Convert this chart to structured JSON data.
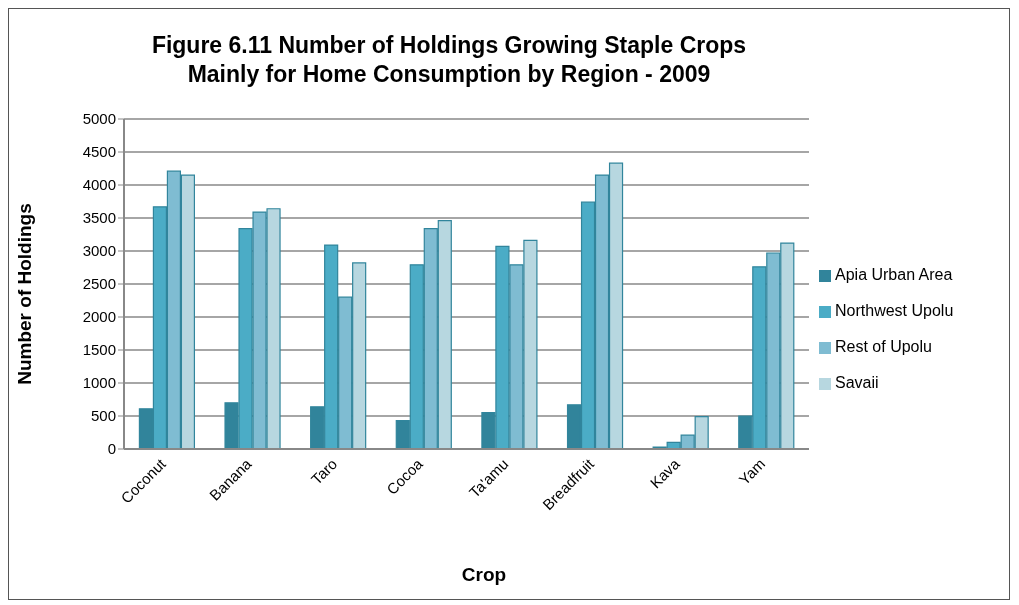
{
  "chart_data": {
    "type": "bar",
    "title": "Figure 6.11 Number of Holdings Growing Staple Crops\nMainly for Home Consumption by Region - 2009",
    "xlabel": "Crop",
    "ylabel": "Number of Holdings",
    "categories": [
      "Coconut",
      "Banana",
      "Taro",
      "Cocoa",
      "Ta'amu",
      "Breadfruit",
      "Kava",
      "Yam"
    ],
    "series": [
      {
        "name": "Apia Urban Area",
        "color": "#31849b",
        "values": [
          610,
          700,
          640,
          430,
          550,
          670,
          30,
          500
        ]
      },
      {
        "name": "Northwest Upolu",
        "color": "#4bacc6",
        "values": [
          3670,
          3340,
          3090,
          2790,
          3070,
          3740,
          100,
          2760
        ]
      },
      {
        "name": "Rest of Upolu",
        "color": "#7fbcd2",
        "values": [
          4210,
          3590,
          2300,
          3340,
          2790,
          4150,
          210,
          2970
        ]
      },
      {
        "name": "Savaii",
        "color": "#b7d7e0",
        "values": [
          4150,
          3640,
          2820,
          3460,
          3160,
          4330,
          490,
          3120
        ]
      }
    ],
    "ylim": [
      0,
      5000
    ],
    "yticks": [
      0,
      500,
      1000,
      1500,
      2000,
      2500,
      3000,
      3500,
      4000,
      4500,
      5000
    ],
    "grid": "y",
    "legend": "right"
  }
}
